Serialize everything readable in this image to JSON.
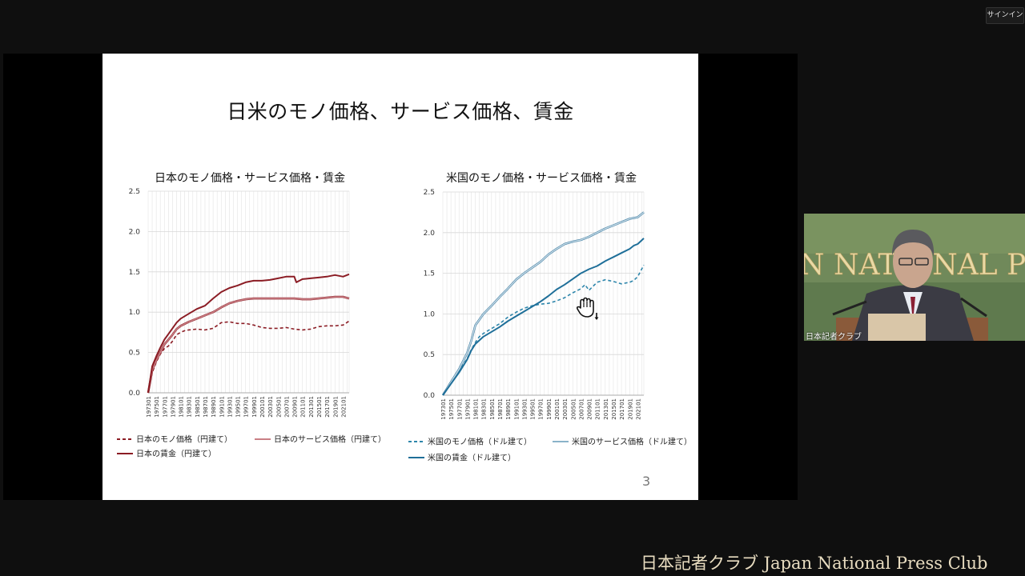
{
  "window": {
    "signin_label": "サインイン"
  },
  "slide": {
    "title": "日米のモノ価格、サービス価格、賃金",
    "page_number": "3"
  },
  "video": {
    "participant_label": "日本記者クラブ",
    "banner_text": "N NATIONAL PR"
  },
  "brand": {
    "text": "日本記者クラブ Japan National Press Club"
  },
  "icons": {
    "cursor": "hand-cursor-icon"
  },
  "chart_data": [
    {
      "type": "line",
      "title": "日本のモノ価格・サービス価格・賃金",
      "xlabel": "",
      "ylabel": "",
      "ylim": [
        0,
        2.5
      ],
      "yticks": [
        "0.0",
        "0.5",
        "1.0",
        "1.5",
        "2.0",
        "2.5"
      ],
      "x_tick_labels": [
        "197301",
        "197501",
        "197701",
        "197901",
        "198101",
        "198301",
        "198501",
        "198701",
        "198901",
        "199101",
        "199301",
        "199501",
        "199701",
        "199901",
        "200101",
        "200301",
        "200501",
        "200701",
        "200901",
        "201101",
        "201301",
        "201501",
        "201701",
        "201901",
        "202101"
      ],
      "x_years": [
        1973,
        1975,
        1977,
        1979,
        1981,
        1983,
        1985,
        1987,
        1989,
        1991,
        1993,
        1995,
        1997,
        1999,
        2001,
        2003,
        2005,
        2007,
        2009,
        2011,
        2013,
        2015,
        2017,
        2019,
        2021
      ],
      "legend_position": "bottom",
      "grid": true,
      "series": [
        {
          "name": "日本のモノ価格（円建て）",
          "style": "dashed",
          "color": "#8b1c24",
          "x": [
            1973,
            1974,
            1975,
            1976,
            1977,
            1978,
            1979,
            1980,
            1981,
            1982,
            1983,
            1985,
            1987,
            1989,
            1991,
            1993,
            1995,
            1997,
            1999,
            2001,
            2003,
            2005,
            2007,
            2009,
            2011,
            2013,
            2015,
            2017,
            2019,
            2021,
            2022.5
          ],
          "y": [
            0.0,
            0.25,
            0.38,
            0.48,
            0.55,
            0.58,
            0.64,
            0.72,
            0.75,
            0.77,
            0.78,
            0.79,
            0.78,
            0.8,
            0.87,
            0.88,
            0.86,
            0.86,
            0.84,
            0.81,
            0.8,
            0.8,
            0.81,
            0.79,
            0.78,
            0.79,
            0.82,
            0.83,
            0.83,
            0.84,
            0.89
          ]
        },
        {
          "name": "日本のサービス価格（円建て）",
          "style": "solid",
          "color": "#c97f85",
          "x": [
            1973,
            1974,
            1975,
            1976,
            1977,
            1978,
            1979,
            1980,
            1981,
            1983,
            1985,
            1987,
            1989,
            1991,
            1993,
            1995,
            1997,
            1999,
            2001,
            2003,
            2005,
            2007,
            2009,
            2011,
            2013,
            2015,
            2017,
            2019,
            2021,
            2022.5
          ],
          "y": [
            0.0,
            0.28,
            0.4,
            0.5,
            0.6,
            0.66,
            0.72,
            0.79,
            0.83,
            0.88,
            0.92,
            0.96,
            1.0,
            1.06,
            1.11,
            1.14,
            1.16,
            1.17,
            1.17,
            1.17,
            1.17,
            1.17,
            1.17,
            1.16,
            1.16,
            1.17,
            1.18,
            1.19,
            1.19,
            1.17
          ]
        },
        {
          "name": "日本の賃金（円建て）",
          "style": "solid",
          "color": "#8b1c24",
          "x": [
            1973,
            1974,
            1975,
            1976,
            1977,
            1978,
            1979,
            1980,
            1981,
            1983,
            1985,
            1987,
            1989,
            1991,
            1993,
            1995,
            1997,
            1999,
            2001,
            2003,
            2005,
            2007,
            2009,
            2009.5,
            2011,
            2013,
            2015,
            2017,
            2019,
            2021,
            2022.5
          ],
          "y": [
            0.0,
            0.33,
            0.45,
            0.56,
            0.66,
            0.73,
            0.8,
            0.87,
            0.92,
            0.98,
            1.04,
            1.08,
            1.17,
            1.25,
            1.3,
            1.33,
            1.37,
            1.39,
            1.39,
            1.4,
            1.42,
            1.44,
            1.44,
            1.37,
            1.41,
            1.42,
            1.43,
            1.44,
            1.46,
            1.44,
            1.47
          ]
        }
      ]
    },
    {
      "type": "line",
      "title": "米国のモノ価格・サービス価格・賃金",
      "xlabel": "",
      "ylabel": "",
      "ylim": [
        0,
        2.5
      ],
      "yticks": [
        "0.0",
        "0.5",
        "1.0",
        "1.5",
        "2.0",
        "2.5"
      ],
      "x_tick_labels": [
        "197301",
        "197501",
        "197701",
        "197901",
        "198101",
        "198301",
        "198501",
        "198701",
        "198901",
        "199101",
        "199301",
        "199501",
        "199701",
        "199901",
        "200101",
        "200301",
        "200501",
        "200701",
        "200901",
        "201101",
        "201301",
        "201501",
        "201701",
        "201901",
        "202101"
      ],
      "x_years": [
        1973,
        1975,
        1977,
        1979,
        1981,
        1983,
        1985,
        1987,
        1989,
        1991,
        1993,
        1995,
        1997,
        1999,
        2001,
        2003,
        2005,
        2007,
        2009,
        2011,
        2013,
        2015,
        2017,
        2019,
        2021
      ],
      "legend_position": "bottom",
      "grid": true,
      "series": [
        {
          "name": "米国のモノ価格（ドル建て）",
          "style": "dashed",
          "color": "#2e86ab",
          "x": [
            1973,
            1975,
            1977,
            1979,
            1980,
            1981,
            1982,
            1983,
            1985,
            1987,
            1989,
            1991,
            1993,
            1995,
            1997,
            1999,
            2001,
            2003,
            2005,
            2007,
            2008,
            2009,
            2011,
            2013,
            2015,
            2017,
            2019,
            2020,
            2021,
            2022.5
          ],
          "y": [
            0.0,
            0.17,
            0.3,
            0.45,
            0.56,
            0.65,
            0.72,
            0.76,
            0.82,
            0.88,
            0.96,
            1.02,
            1.07,
            1.1,
            1.12,
            1.13,
            1.16,
            1.2,
            1.26,
            1.31,
            1.36,
            1.29,
            1.39,
            1.42,
            1.4,
            1.37,
            1.39,
            1.41,
            1.46,
            1.6
          ]
        },
        {
          "name": "米国のサービス価格（ドル建て）",
          "style": "solid",
          "color": "#8ab3c9",
          "x": [
            1973,
            1975,
            1977,
            1979,
            1980,
            1981,
            1983,
            1985,
            1987,
            1989,
            1991,
            1993,
            1995,
            1997,
            1999,
            2001,
            2003,
            2005,
            2007,
            2009,
            2011,
            2013,
            2015,
            2017,
            2019,
            2021,
            2022.5
          ],
          "y": [
            0.0,
            0.16,
            0.32,
            0.52,
            0.67,
            0.86,
            1.0,
            1.1,
            1.21,
            1.31,
            1.42,
            1.5,
            1.57,
            1.64,
            1.73,
            1.8,
            1.86,
            1.89,
            1.91,
            1.95,
            2.0,
            2.05,
            2.09,
            2.13,
            2.17,
            2.19,
            2.25
          ]
        },
        {
          "name": "米国の賃金（ドル建て）",
          "style": "solid",
          "color": "#1f6f99",
          "x": [
            1973,
            1975,
            1977,
            1979,
            1980,
            1981,
            1983,
            1985,
            1987,
            1989,
            1991,
            1993,
            1995,
            1997,
            1999,
            2001,
            2003,
            2005,
            2007,
            2009,
            2011,
            2013,
            2015,
            2017,
            2019,
            2020,
            2021,
            2022.5
          ],
          "y": [
            0.0,
            0.14,
            0.28,
            0.44,
            0.55,
            0.63,
            0.72,
            0.78,
            0.84,
            0.91,
            0.97,
            1.03,
            1.09,
            1.15,
            1.22,
            1.3,
            1.36,
            1.43,
            1.5,
            1.55,
            1.59,
            1.65,
            1.7,
            1.75,
            1.8,
            1.84,
            1.86,
            1.93
          ]
        }
      ]
    }
  ]
}
